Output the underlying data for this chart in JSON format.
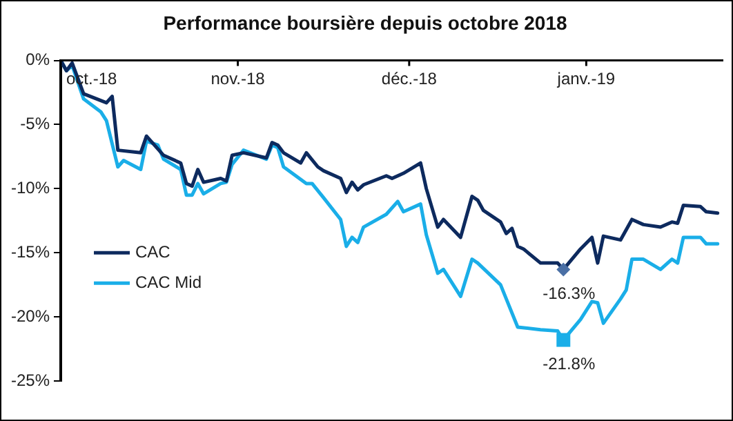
{
  "chart_data": {
    "type": "line",
    "title": "Performance boursière depuis octobre 2018",
    "xlim": [
      "2018-10-01",
      "2019-01-25"
    ],
    "xticks": [
      {
        "value": "2018-10-01",
        "label": "oct.-18"
      },
      {
        "value": "2018-11-01",
        "label": "nov.-18"
      },
      {
        "value": "2018-12-01",
        "label": "déc.-18"
      },
      {
        "value": "2019-01-01",
        "label": "janv.-19"
      }
    ],
    "ylim": [
      -25,
      0
    ],
    "yticks": [
      {
        "value": 0,
        "label": "0%"
      },
      {
        "value": -5,
        "label": "-5%"
      },
      {
        "value": -10,
        "label": "-10%"
      },
      {
        "value": -15,
        "label": "-15%"
      },
      {
        "value": -20,
        "label": "-20%"
      },
      {
        "value": -25,
        "label": "-25%"
      }
    ],
    "grid": false,
    "legend": "left",
    "marker": "none",
    "line_style": "solid",
    "series": [
      {
        "name": "CAC",
        "color": "#0d2a5e",
        "x": [
          "2018-10-01",
          "2018-10-02",
          "2018-10-03",
          "2018-10-05",
          "2018-10-09",
          "2018-10-10",
          "2018-10-11",
          "2018-10-15",
          "2018-10-16",
          "2018-10-19",
          "2018-10-22",
          "2018-10-23",
          "2018-10-24",
          "2018-10-25",
          "2018-10-26",
          "2018-10-29",
          "2018-10-30",
          "2018-10-31",
          "2018-11-02",
          "2018-11-06",
          "2018-11-07",
          "2018-11-08",
          "2018-11-09",
          "2018-11-12",
          "2018-11-13",
          "2018-11-15",
          "2018-11-16",
          "2018-11-19",
          "2018-11-20",
          "2018-11-21",
          "2018-11-22",
          "2018-11-23",
          "2018-11-27",
          "2018-11-28",
          "2018-11-30",
          "2018-12-03",
          "2018-12-04",
          "2018-12-06",
          "2018-12-07",
          "2018-12-10",
          "2018-12-12",
          "2018-12-13",
          "2018-12-14",
          "2018-12-17",
          "2018-12-18",
          "2018-12-19",
          "2018-12-20",
          "2018-12-21",
          "2018-12-24",
          "2018-12-27",
          "2018-12-28",
          "2018-12-31",
          "2019-01-02",
          "2019-01-03",
          "2019-01-04",
          "2019-01-07",
          "2019-01-09",
          "2019-01-11",
          "2019-01-14",
          "2019-01-16",
          "2019-01-17",
          "2019-01-18",
          "2019-01-21",
          "2019-01-22",
          "2019-01-24"
        ],
        "values": [
          0,
          -0.8,
          -0.2,
          -2.6,
          -3.3,
          -2.8,
          -7.0,
          -7.2,
          -5.9,
          -7.4,
          -8.0,
          -9.6,
          -9.8,
          -8.5,
          -9.5,
          -9.2,
          -9.4,
          -7.4,
          -7.2,
          -7.6,
          -6.4,
          -6.6,
          -7.2,
          -8.0,
          -7.2,
          -8.3,
          -8.6,
          -9.2,
          -10.3,
          -9.5,
          -10.1,
          -9.7,
          -9.0,
          -9.2,
          -8.8,
          -8.0,
          -10.0,
          -13.0,
          -12.4,
          -13.8,
          -10.6,
          -10.9,
          -11.7,
          -12.6,
          -13.5,
          -13.1,
          -14.5,
          -14.7,
          -15.8,
          -15.8,
          -16.3,
          -14.7,
          -13.8,
          -15.8,
          -13.7,
          -14.0,
          -12.4,
          -12.8,
          -13.0,
          -12.6,
          -12.7,
          -11.3,
          -11.4,
          -11.8,
          -11.9
        ]
      },
      {
        "name": "CAC Mid",
        "color": "#1aaee8",
        "x": [
          "2018-10-01",
          "2018-10-02",
          "2018-10-03",
          "2018-10-05",
          "2018-10-08",
          "2018-10-09",
          "2018-10-11",
          "2018-10-12",
          "2018-10-15",
          "2018-10-16",
          "2018-10-18",
          "2018-10-19",
          "2018-10-22",
          "2018-10-23",
          "2018-10-24",
          "2018-10-25",
          "2018-10-26",
          "2018-10-29",
          "2018-10-30",
          "2018-10-31",
          "2018-11-02",
          "2018-11-06",
          "2018-11-07",
          "2018-11-08",
          "2018-11-09",
          "2018-11-13",
          "2018-11-14",
          "2018-11-16",
          "2018-11-19",
          "2018-11-20",
          "2018-11-21",
          "2018-11-22",
          "2018-11-23",
          "2018-11-27",
          "2018-11-29",
          "2018-11-30",
          "2018-12-03",
          "2018-12-04",
          "2018-12-06",
          "2018-12-07",
          "2018-12-10",
          "2018-12-12",
          "2018-12-13",
          "2018-12-17",
          "2018-12-18",
          "2018-12-20",
          "2018-12-24",
          "2018-12-27",
          "2018-12-28",
          "2018-12-31",
          "2019-01-02",
          "2019-01-03",
          "2019-01-04",
          "2019-01-07",
          "2019-01-08",
          "2019-01-09",
          "2019-01-11",
          "2019-01-14",
          "2019-01-16",
          "2019-01-17",
          "2019-01-18",
          "2019-01-21",
          "2019-01-22",
          "2019-01-24"
        ],
        "values": [
          0,
          -0.8,
          -0.4,
          -3.0,
          -4.0,
          -4.7,
          -8.3,
          -7.8,
          -8.5,
          -6.3,
          -6.6,
          -7.7,
          -8.5,
          -10.5,
          -10.5,
          -9.6,
          -10.4,
          -9.6,
          -9.5,
          -8.1,
          -7.0,
          -7.7,
          -6.6,
          -6.8,
          -8.3,
          -9.6,
          -9.6,
          -10.7,
          -12.4,
          -14.5,
          -13.8,
          -14.2,
          -13.0,
          -12.0,
          -11.0,
          -11.8,
          -11.2,
          -13.6,
          -16.6,
          -16.3,
          -18.4,
          -15.5,
          -15.8,
          -17.5,
          -18.6,
          -20.8,
          -21.0,
          -21.1,
          -21.8,
          -20.2,
          -18.8,
          -18.9,
          -20.5,
          -18.6,
          -17.9,
          -15.5,
          -15.5,
          -16.3,
          -15.5,
          -15.8,
          -13.8,
          -13.8,
          -14.3,
          -14.3
        ]
      }
    ],
    "annotations": [
      {
        "text": "-16.3%",
        "x": "2018-12-28",
        "y": -16.3
      },
      {
        "text": "-21.8%",
        "x": "2018-12-28",
        "y": -21.8
      }
    ]
  }
}
